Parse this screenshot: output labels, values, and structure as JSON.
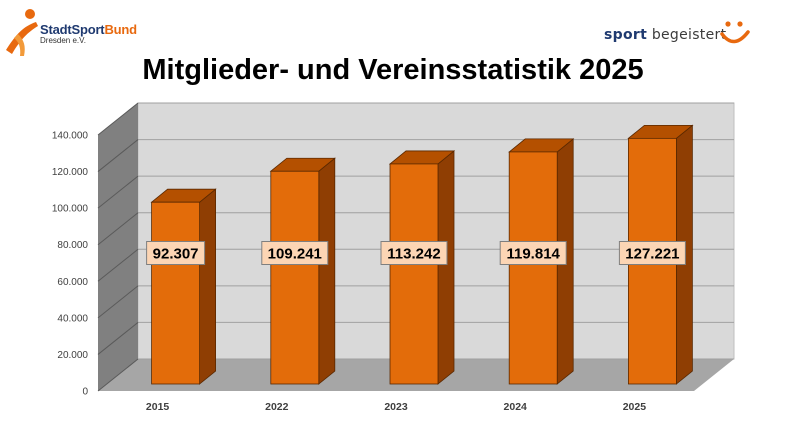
{
  "header": {
    "logo_left": {
      "brand_primary": "StadtSport",
      "brand_secondary": "Bund",
      "subtitle": "Dresden e.V."
    },
    "logo_right": {
      "slogan_bold": "sport",
      "slogan_rest": " begeistert"
    }
  },
  "colors": {
    "bar_front": "#e36c0a",
    "bar_top": "#b45000",
    "bar_side": "#8f3e03",
    "label_box": "#fcd5b4",
    "wall": "#d9d9d9",
    "floor": "#a6a6a6"
  },
  "chart_data": {
    "type": "bar",
    "title": "Mitglieder- und Vereinsstatistik 2025",
    "categories": [
      "2015",
      "2022",
      "2023",
      "2024",
      "2025"
    ],
    "values": [
      92307,
      109241,
      113242,
      119814,
      127221
    ],
    "data_labels": [
      "92.307",
      "109.241",
      "113.242",
      "119.814",
      "127.221"
    ],
    "ylim": [
      0,
      140000
    ],
    "yticks": [
      0,
      20000,
      40000,
      60000,
      80000,
      100000,
      120000,
      140000
    ],
    "ytick_labels": [
      "0",
      "20.000",
      "40.000",
      "60.000",
      "80.000",
      "100.000",
      "120.000",
      "140.000"
    ],
    "xlabel": "",
    "ylabel": "",
    "grid": true,
    "style": "3d-column"
  }
}
